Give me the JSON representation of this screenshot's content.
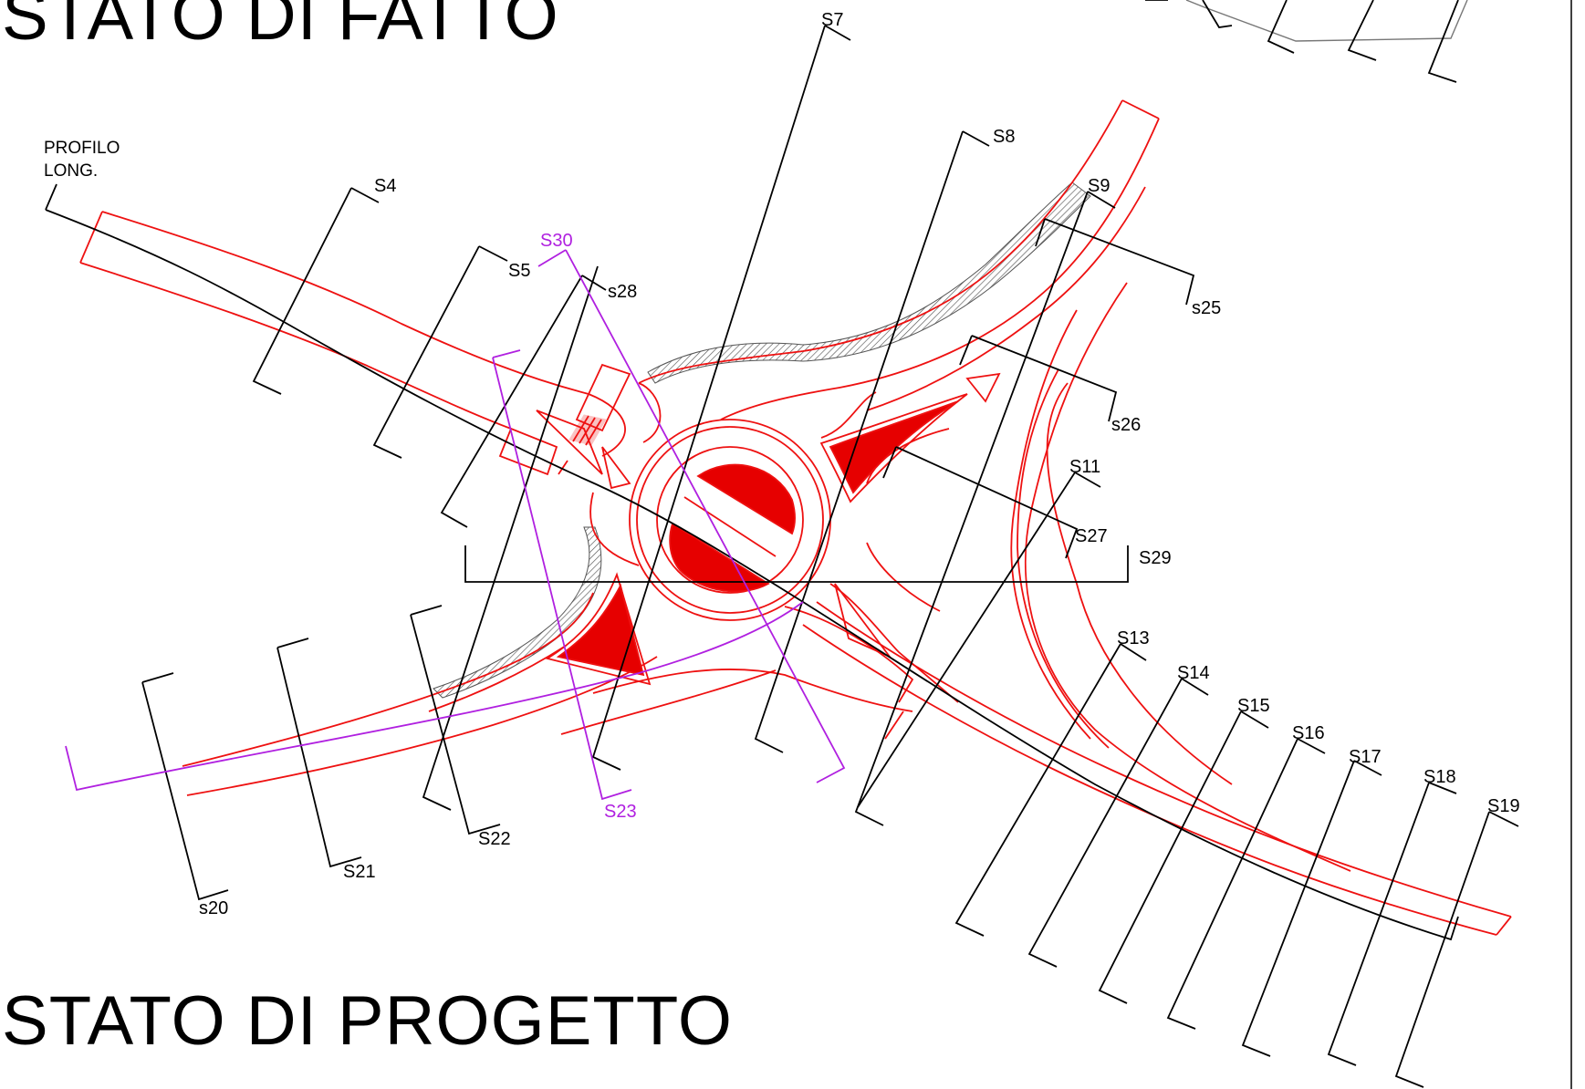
{
  "titles": {
    "existing_state": "STATO DI FATTO",
    "project_state": "STATO DI PROGETTO"
  },
  "profile_label": "PROFILO\nLONG.",
  "sections": [
    {
      "id": "s4",
      "label": "S4",
      "color": "black"
    },
    {
      "id": "s5",
      "label": "S5",
      "color": "black"
    },
    {
      "id": "s7",
      "label": "S7",
      "color": "black"
    },
    {
      "id": "s8",
      "label": "S8",
      "color": "black"
    },
    {
      "id": "s9",
      "label": "S9",
      "color": "black"
    },
    {
      "id": "s11",
      "label": "S11",
      "color": "black"
    },
    {
      "id": "s13",
      "label": "S13",
      "color": "black"
    },
    {
      "id": "s14",
      "label": "S14",
      "color": "black"
    },
    {
      "id": "s15",
      "label": "S15",
      "color": "black"
    },
    {
      "id": "s16",
      "label": "S16",
      "color": "black"
    },
    {
      "id": "s17",
      "label": "S17",
      "color": "black"
    },
    {
      "id": "s18",
      "label": "S18",
      "color": "black"
    },
    {
      "id": "s19",
      "label": "S19",
      "color": "black"
    },
    {
      "id": "s20",
      "label": "s20",
      "color": "black"
    },
    {
      "id": "s21",
      "label": "S21",
      "color": "black"
    },
    {
      "id": "s22",
      "label": "S22",
      "color": "black"
    },
    {
      "id": "s23",
      "label": "S23",
      "color": "magenta"
    },
    {
      "id": "s25",
      "label": "s25",
      "color": "black"
    },
    {
      "id": "s26",
      "label": "s26",
      "color": "black"
    },
    {
      "id": "s27",
      "label": "S27",
      "color": "black"
    },
    {
      "id": "s28",
      "label": "s28",
      "color": "black"
    },
    {
      "id": "s29",
      "label": "S29",
      "color": "black"
    },
    {
      "id": "s30",
      "label": "S30",
      "color": "magenta"
    }
  ],
  "colors": {
    "project_road": "#ee1111",
    "section_lines": "#000000",
    "special_sections": "#b020e0",
    "existing_edge_hatch": "#777777"
  }
}
